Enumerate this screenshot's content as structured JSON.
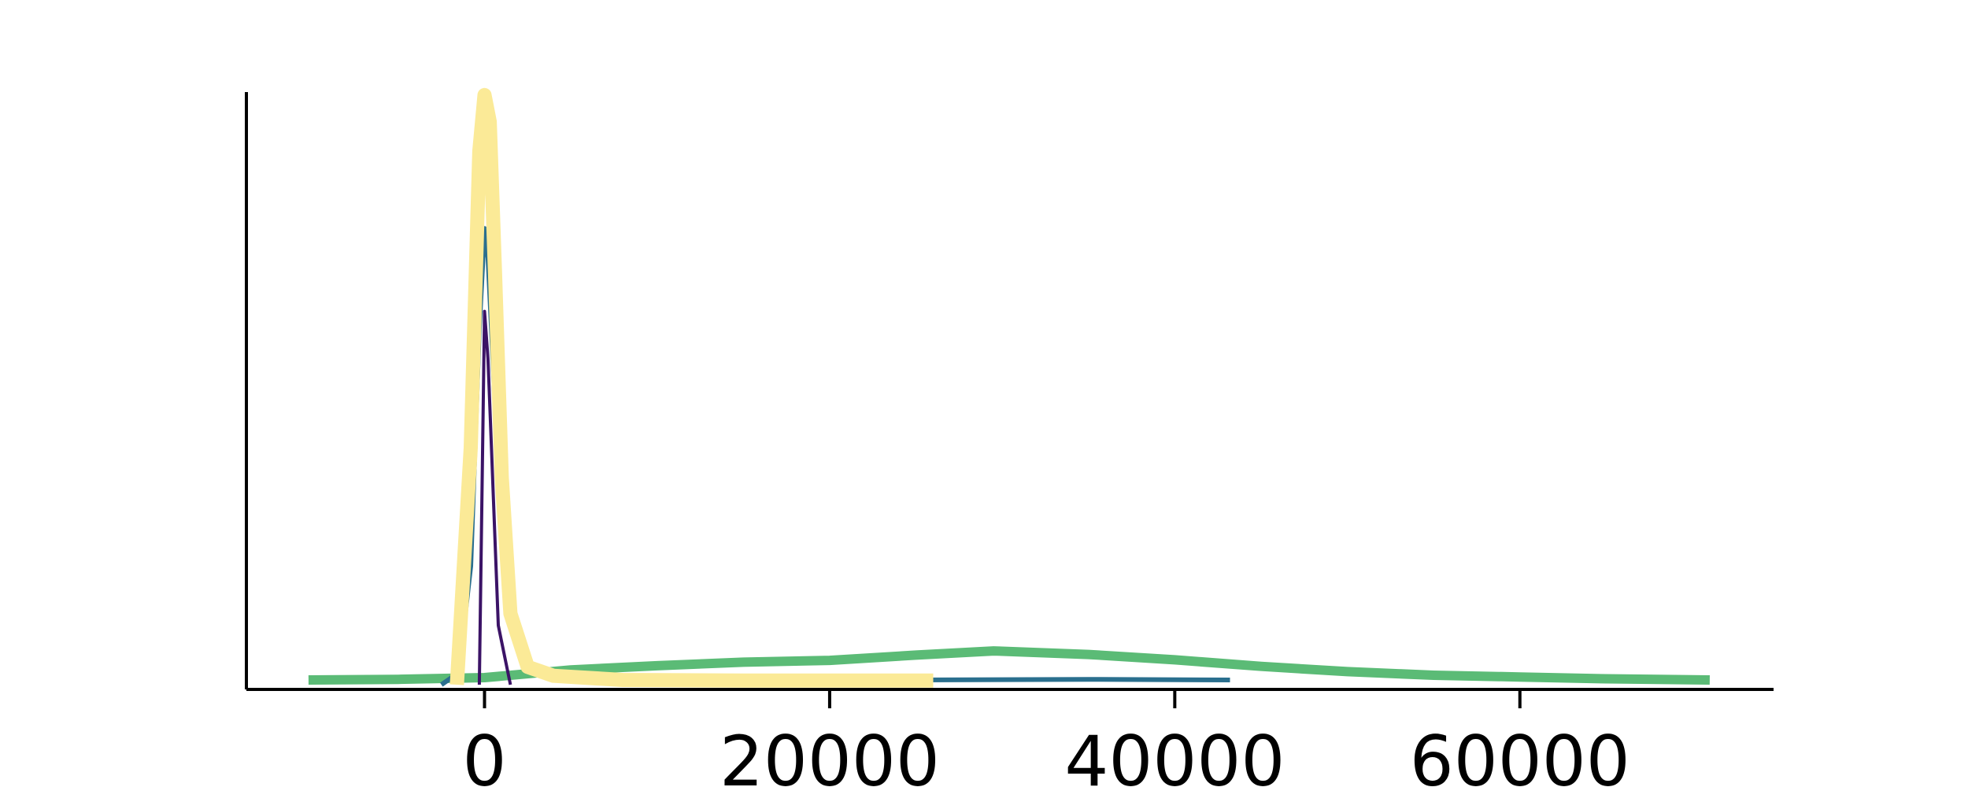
{
  "chart_data": {
    "type": "line",
    "title": "",
    "xlabel": "",
    "ylabel": "",
    "xlim": [
      -13800,
      74700
    ],
    "ylim": [
      0,
      1.0
    ],
    "x_ticks": [
      0,
      20000,
      40000,
      60000
    ],
    "x_tick_labels": [
      "0",
      "20000",
      "40000",
      "60000"
    ],
    "grid": false,
    "legend": "none",
    "series": [
      {
        "color": "#5bbb76",
        "x": [
          -10200,
          -5000,
          0,
          5000,
          10000,
          15000,
          20000,
          25000,
          29500,
          35000,
          40000,
          45000,
          50000,
          55000,
          60000,
          65000,
          71000
        ],
        "y": [
          0.008,
          0.009,
          0.012,
          0.025,
          0.032,
          0.038,
          0.041,
          0.05,
          0.057,
          0.051,
          0.042,
          0.031,
          0.022,
          0.016,
          0.013,
          0.01,
          0.008
        ]
      },
      {
        "color": "#2a6f8e",
        "x": [
          -2500,
          -1500,
          -800,
          -300,
          0,
          200,
          400,
          800,
          1500,
          2500,
          4000,
          8000,
          15000,
          25000,
          35000,
          43200
        ],
        "y": [
          0.0,
          0.02,
          0.2,
          0.6,
          0.77,
          0.72,
          0.6,
          0.35,
          0.1,
          0.03,
          0.012,
          0.008,
          0.008,
          0.008,
          0.009,
          0.008
        ]
      },
      {
        "color": "#3b1366",
        "x": [
          -300,
          0,
          200,
          400,
          800,
          1500
        ],
        "y": [
          0.0,
          0.63,
          0.55,
          0.4,
          0.1,
          0.0
        ]
      },
      {
        "color": "#fbea97",
        "x": [
          -1600,
          -800,
          -300,
          0,
          300,
          600,
          1000,
          1500,
          2500,
          4000,
          8000,
          15000,
          26000
        ],
        "y": [
          0.0,
          0.4,
          0.9,
          0.995,
          0.95,
          0.7,
          0.35,
          0.12,
          0.03,
          0.015,
          0.008,
          0.007,
          0.007
        ]
      }
    ]
  }
}
